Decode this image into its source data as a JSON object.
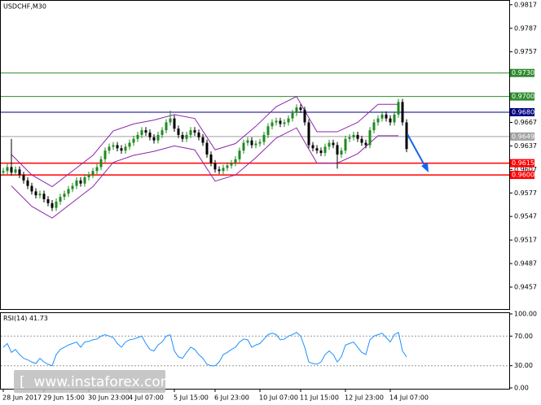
{
  "chart_data": [
    {
      "type": "candlestick",
      "title": "USDCHF,M30",
      "categories": [
        "28 Jun 2017",
        null,
        null,
        null,
        null,
        null,
        null,
        null,
        null,
        null,
        "29 Jun 15:00",
        null,
        null,
        null,
        null,
        null,
        null,
        null,
        null,
        null,
        null,
        "30 Jun 23:00",
        null,
        null,
        null,
        null,
        null,
        null,
        null,
        null,
        null,
        "4 Jul 07:00",
        null,
        null,
        null,
        null,
        null,
        null,
        null,
        null,
        null,
        null,
        "5 Jul 15:00",
        null,
        null,
        null,
        null,
        null,
        null,
        null,
        null,
        null,
        "6 Jul 23:00",
        null,
        null,
        null,
        null,
        null,
        null,
        null,
        null,
        null,
        null,
        "10 Jul 07:00",
        null,
        null,
        null,
        null,
        null,
        null,
        null,
        null,
        null,
        "11 Jul 15:00",
        null,
        null,
        null,
        null,
        null,
        null,
        null,
        null,
        null,
        null,
        "12 Jul 23:00",
        null,
        null,
        null,
        null,
        null,
        null,
        null,
        null,
        null,
        null,
        "14 Jul 07:00",
        null,
        null,
        null,
        null
      ],
      "open": [
        0.9603,
        0.9605,
        0.961,
        0.9603,
        0.9607,
        0.96,
        0.9593,
        0.9586,
        0.9579,
        0.9574,
        0.9576,
        0.9569,
        0.9564,
        0.9558,
        0.9566,
        0.9572,
        0.9576,
        0.9582,
        0.9586,
        0.9593,
        0.9589,
        0.9597,
        0.96,
        0.9605,
        0.961,
        0.962,
        0.9631,
        0.9636,
        0.9638,
        0.9634,
        0.9631,
        0.9636,
        0.9641,
        0.9646,
        0.9651,
        0.9657,
        0.9654,
        0.9648,
        0.9644,
        0.9651,
        0.9657,
        0.9667,
        0.9672,
        0.9659,
        0.9651,
        0.9646,
        0.9651,
        0.9657,
        0.9654,
        0.9648,
        0.9641,
        0.9626,
        0.9615,
        0.9607,
        0.9605,
        0.9609,
        0.9612,
        0.9615,
        0.962,
        0.9631,
        0.9641,
        0.9644,
        0.9638,
        0.964,
        0.9642,
        0.9651,
        0.9662,
        0.9667,
        0.9669,
        0.9665,
        0.9667,
        0.9672,
        0.9679,
        0.9686,
        0.9683,
        0.9667,
        0.9638,
        0.9634,
        0.9631,
        0.9628,
        0.9636,
        0.9641,
        0.9638,
        0.9626,
        0.9631,
        0.9646,
        0.9648,
        0.9651,
        0.9646,
        0.9641,
        0.9638,
        0.9657,
        0.9667,
        0.9672,
        0.9677,
        0.9672,
        0.9667,
        0.9677,
        0.9693,
        0.9667
      ],
      "high": [
        0.9609,
        0.9614,
        0.9646,
        0.9611,
        0.9611,
        0.9604,
        0.9597,
        0.959,
        0.9583,
        0.958,
        0.958,
        0.9573,
        0.9568,
        0.957,
        0.9576,
        0.958,
        0.9586,
        0.959,
        0.9597,
        0.9597,
        0.9601,
        0.9604,
        0.9609,
        0.9614,
        0.9624,
        0.9635,
        0.964,
        0.9642,
        0.9642,
        0.9638,
        0.964,
        0.9645,
        0.965,
        0.9655,
        0.9661,
        0.9661,
        0.9658,
        0.9652,
        0.9655,
        0.9661,
        0.9671,
        0.9682,
        0.9676,
        0.9663,
        0.9655,
        0.9655,
        0.9661,
        0.9661,
        0.9658,
        0.9652,
        0.9645,
        0.963,
        0.9619,
        0.9611,
        0.9613,
        0.9616,
        0.9619,
        0.9624,
        0.9635,
        0.9645,
        0.9648,
        0.9648,
        0.9644,
        0.9646,
        0.9655,
        0.9666,
        0.9671,
        0.9673,
        0.9673,
        0.9671,
        0.9676,
        0.9683,
        0.969,
        0.969,
        0.9687,
        0.9671,
        0.9642,
        0.9638,
        0.9635,
        0.964,
        0.9645,
        0.9645,
        0.9642,
        0.9635,
        0.965,
        0.9652,
        0.9655,
        0.9655,
        0.965,
        0.9645,
        0.9661,
        0.9671,
        0.9676,
        0.9681,
        0.9681,
        0.9676,
        0.9681,
        0.9697,
        0.9697,
        0.9671
      ],
      "low": [
        0.9599,
        0.9601,
        0.9599,
        0.9599,
        0.9596,
        0.9589,
        0.9582,
        0.9575,
        0.957,
        0.957,
        0.9565,
        0.956,
        0.9554,
        0.9554,
        0.9562,
        0.9568,
        0.9572,
        0.9578,
        0.9582,
        0.9585,
        0.9585,
        0.9593,
        0.9596,
        0.9601,
        0.9606,
        0.9616,
        0.9627,
        0.9632,
        0.963,
        0.9627,
        0.9627,
        0.9632,
        0.9637,
        0.9642,
        0.9647,
        0.965,
        0.9644,
        0.964,
        0.964,
        0.9647,
        0.9653,
        0.9663,
        0.9655,
        0.9647,
        0.9642,
        0.9642,
        0.9647,
        0.965,
        0.9644,
        0.9637,
        0.9622,
        0.9611,
        0.9603,
        0.9601,
        0.9601,
        0.9605,
        0.9608,
        0.9611,
        0.9616,
        0.9627,
        0.9637,
        0.9634,
        0.9634,
        0.9636,
        0.9638,
        0.9647,
        0.9658,
        0.9663,
        0.9661,
        0.9661,
        0.9663,
        0.9668,
        0.9675,
        0.9679,
        0.9663,
        0.9634,
        0.963,
        0.9627,
        0.9624,
        0.9624,
        0.9632,
        0.9634,
        0.9608,
        0.9622,
        0.9627,
        0.9642,
        0.9644,
        0.9642,
        0.9637,
        0.9634,
        0.9634,
        0.9653,
        0.9663,
        0.9668,
        0.9668,
        0.9663,
        0.9663,
        0.9673,
        0.9663,
        0.9629
      ],
      "close": [
        0.9605,
        0.961,
        0.9603,
        0.9607,
        0.96,
        0.9593,
        0.9586,
        0.9579,
        0.9574,
        0.9576,
        0.9569,
        0.9564,
        0.9558,
        0.9566,
        0.9572,
        0.9576,
        0.9582,
        0.9586,
        0.9593,
        0.9589,
        0.9597,
        0.96,
        0.9605,
        0.961,
        0.962,
        0.9631,
        0.9636,
        0.9638,
        0.9634,
        0.9631,
        0.9636,
        0.9641,
        0.9646,
        0.9651,
        0.9657,
        0.9654,
        0.9648,
        0.9644,
        0.9651,
        0.9657,
        0.9667,
        0.9672,
        0.9659,
        0.9651,
        0.9646,
        0.9651,
        0.9657,
        0.9654,
        0.9648,
        0.9641,
        0.9626,
        0.9615,
        0.9607,
        0.9605,
        0.9609,
        0.9612,
        0.9615,
        0.962,
        0.9631,
        0.9641,
        0.9644,
        0.9638,
        0.964,
        0.9642,
        0.9651,
        0.9662,
        0.9667,
        0.9669,
        0.9665,
        0.9667,
        0.9672,
        0.9679,
        0.9686,
        0.9683,
        0.9667,
        0.9638,
        0.9634,
        0.9631,
        0.9628,
        0.9636,
        0.9641,
        0.9638,
        0.9626,
        0.9631,
        0.9646,
        0.9648,
        0.9651,
        0.9646,
        0.9641,
        0.9638,
        0.9657,
        0.9667,
        0.9672,
        0.9677,
        0.9672,
        0.9667,
        0.9677,
        0.9693,
        0.9667,
        0.9633
      ],
      "bull_color": "#1f8a1f",
      "bear_color": "#000000",
      "bands": {
        "color": "#8e24aa",
        "upper": [
          0.9626,
          0.96,
          0.9585,
          0.9605,
          0.9625,
          0.9656,
          0.9665,
          0.967,
          0.9677,
          0.9672,
          0.9632,
          0.964,
          0.9662,
          0.9687,
          0.97,
          0.9655,
          0.9655,
          0.9667,
          0.969,
          0.969
        ],
        "lower": [
          0.9586,
          0.956,
          0.9545,
          0.9565,
          0.9585,
          0.9616,
          0.9625,
          0.963,
          0.9637,
          0.9632,
          0.9592,
          0.96,
          0.9622,
          0.9647,
          0.966,
          0.9615,
          0.9615,
          0.9627,
          0.965,
          0.965
        ]
      },
      "ylim": [
        0.9429,
        0.9822
      ],
      "yticks": [
        0.9817,
        0.9787,
        0.9757,
        0.9667,
        0.9637,
        0.9607,
        0.9577,
        0.9547,
        0.9517,
        0.9487,
        0.9457
      ],
      "levels": [
        {
          "value": 0.973,
          "label": "0.9730",
          "color": "#2e8b2e"
        },
        {
          "value": 0.97,
          "label": "0.9700",
          "color": "#2e8b2e"
        },
        {
          "value": 0.968,
          "label": "0.9680",
          "color": "#000080"
        },
        {
          "value": 0.9649,
          "color": "#a0a0a0"
        },
        {
          "value": 0.9615,
          "color": "#ff0000"
        },
        {
          "value": 0.96,
          "label": "0.9600",
          "color": "#ff0000"
        }
      ],
      "watermark": "[  www.instaforex.com"
    },
    {
      "type": "line",
      "title": "RSI(14)",
      "color": "#1e90ff",
      "values": [
        55,
        60,
        48,
        52,
        45,
        40,
        38,
        35,
        33,
        40,
        35,
        32,
        30,
        45,
        52,
        55,
        58,
        60,
        62,
        55,
        62,
        63,
        65,
        66,
        70,
        72,
        70,
        68,
        60,
        55,
        62,
        65,
        66,
        68,
        70,
        60,
        52,
        50,
        58,
        62,
        70,
        72,
        50,
        42,
        40,
        48,
        55,
        52,
        45,
        40,
        32,
        30,
        30,
        35,
        45,
        48,
        52,
        55,
        62,
        66,
        65,
        55,
        58,
        60,
        66,
        72,
        74,
        72,
        65,
        66,
        70,
        72,
        75,
        70,
        55,
        35,
        33,
        32,
        35,
        45,
        50,
        45,
        35,
        42,
        58,
        60,
        62,
        55,
        48,
        45,
        65,
        70,
        72,
        74,
        68,
        62,
        72,
        75,
        50,
        41.73
      ],
      "ylim": [
        0,
        100
      ],
      "yticks": [
        {
          "value": 100,
          "label": "100.00"
        },
        {
          "value": 70,
          "label": "70.00"
        },
        {
          "value": 30,
          "label": "30.00"
        },
        {
          "value": 0,
          "label": "0.00"
        }
      ]
    }
  ]
}
